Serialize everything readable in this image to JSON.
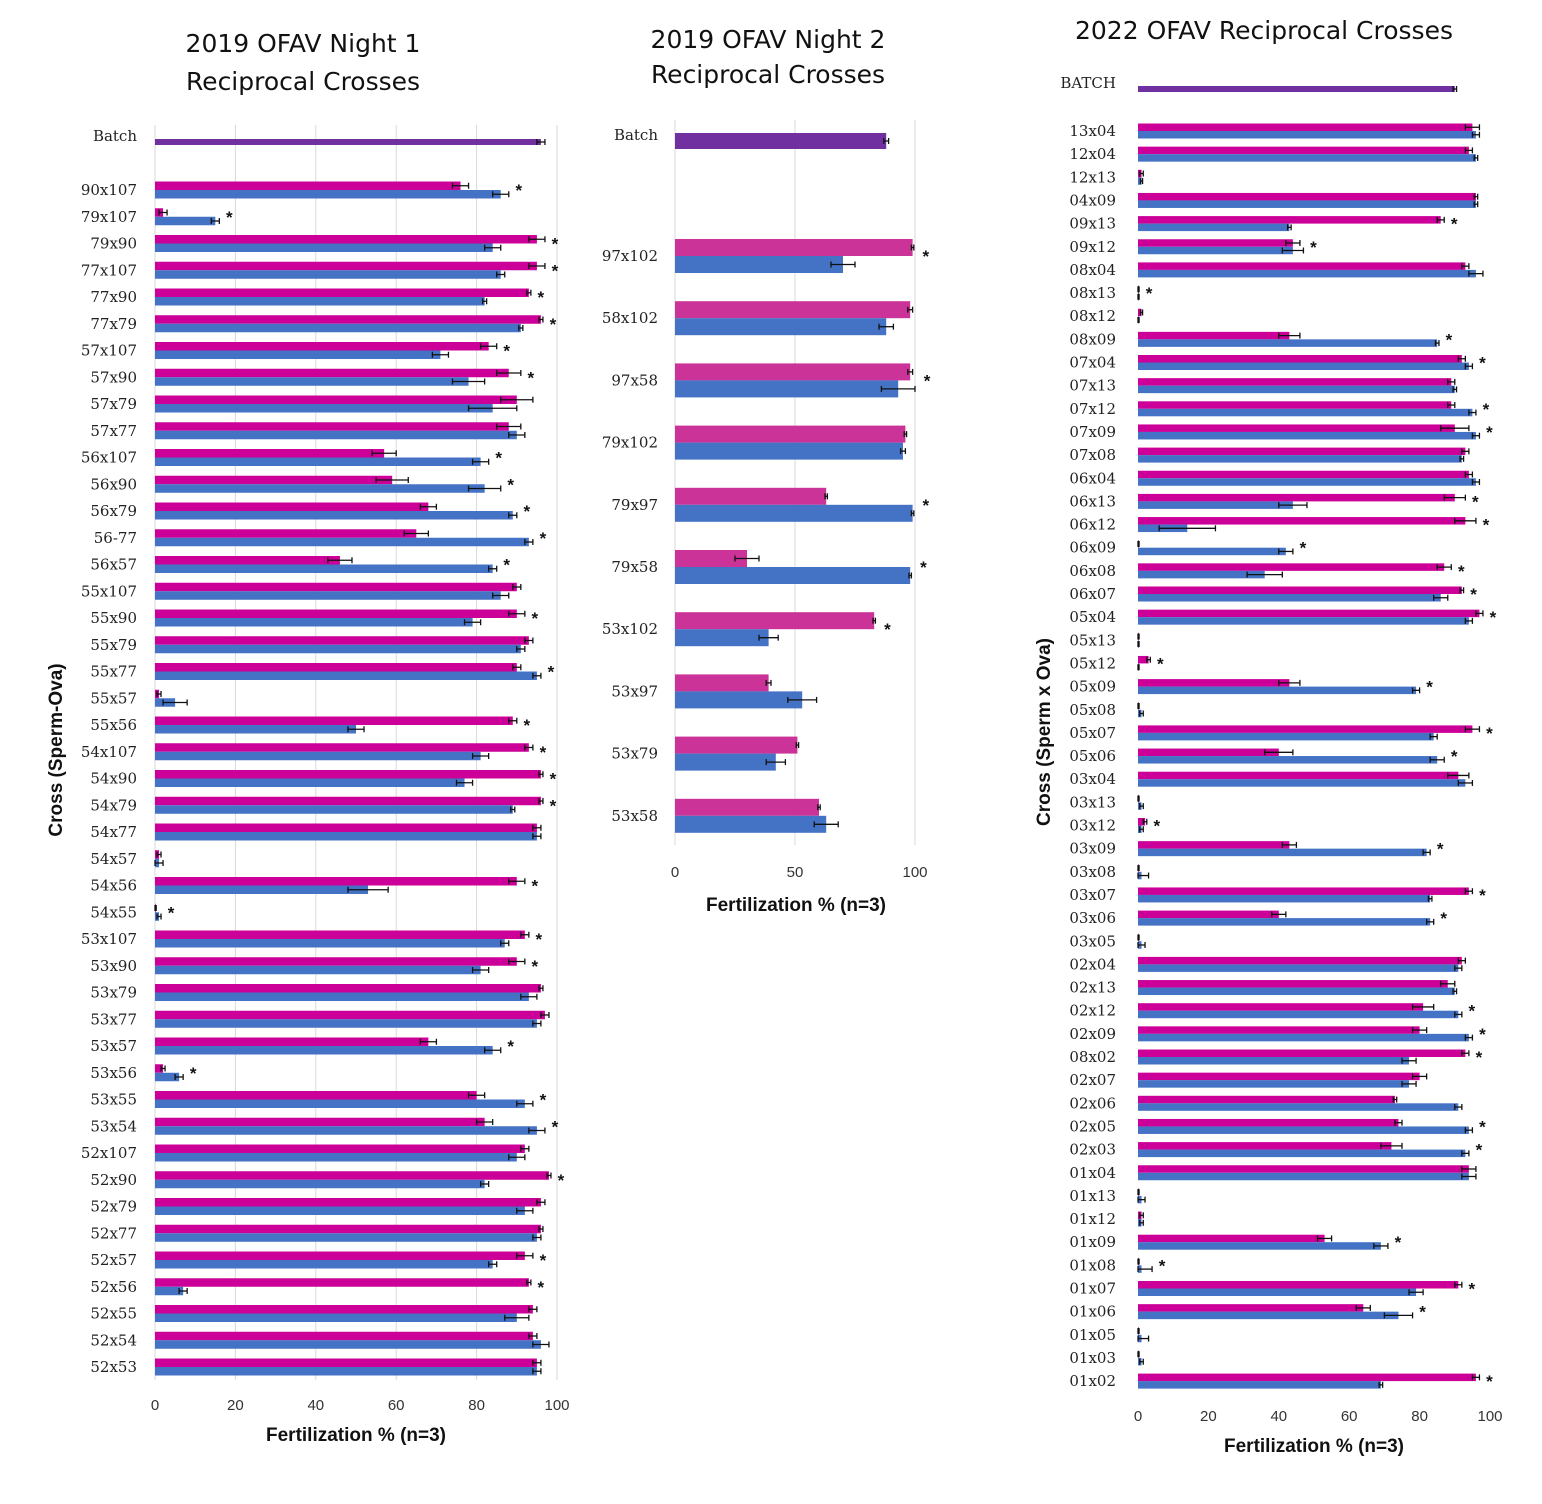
{
  "chart_data": [
    {
      "type": "bar",
      "orientation": "horizontal",
      "title": "2019 OFAV Night 1\nReciprocal Crosses",
      "xlabel": "Fertilization % (n=3)",
      "ylabel": "Cross (Sperm-Ova)",
      "xlim": [
        0,
        100
      ],
      "xticks": [
        0,
        20,
        40,
        60,
        80,
        100
      ],
      "grid": true,
      "colors": {
        "batch": "#7030a0",
        "pink": "#cc0099",
        "blue": "#4472c4"
      },
      "batch": {
        "label": "Batch",
        "value": 96,
        "err": 1
      },
      "categories": [
        "90x107",
        "79x107",
        "79x90",
        "77x107",
        "77x90",
        "77x79",
        "57x107",
        "57x90",
        "57x79",
        "57x77",
        "56x107",
        "56x90",
        "56x79",
        "56-77",
        "56x57",
        "55x107",
        "55x90",
        "55x79",
        "55x77",
        "55x57",
        "55x56",
        "54x107",
        "54x90",
        "54x79",
        "54x77",
        "54x57",
        "54x56",
        "54x55",
        "53x107",
        "53x90",
        "53x79",
        "53x77",
        "53x57",
        "53x56",
        "53x55",
        "53x54",
        "52x107",
        "52x90",
        "52x79",
        "52x77",
        "52x57",
        "52x56",
        "52x55",
        "52x54",
        "52x53"
      ],
      "series": [
        {
          "values": [
            76,
            2,
            95,
            95,
            93,
            96,
            83,
            88,
            90,
            88,
            57,
            59,
            68,
            65,
            46,
            90,
            90,
            93,
            90,
            1,
            89,
            93,
            96,
            96,
            95,
            1,
            90,
            0,
            92,
            90,
            96,
            97,
            68,
            2,
            80,
            82,
            92,
            98,
            96,
            96,
            92,
            93,
            94,
            94,
            95
          ],
          "errors": [
            2,
            1,
            2,
            2,
            0.5,
            0.5,
            2,
            3,
            4,
            3,
            3,
            4,
            2,
            3,
            3,
            1,
            2,
            1,
            1,
            0.5,
            1,
            1,
            0.5,
            0.5,
            1,
            0.5,
            2,
            0.3,
            1,
            2,
            0.5,
            1,
            2,
            0.5,
            2,
            2,
            1,
            0.5,
            1,
            0.5,
            2,
            0.5,
            1,
            1,
            1
          ]
        },
        {
          "values": [
            86,
            15,
            84,
            86,
            82,
            91,
            71,
            78,
            84,
            90,
            81,
            82,
            89,
            93,
            84,
            86,
            79,
            91,
            95,
            5,
            50,
            81,
            77,
            89,
            95,
            1,
            53,
            1,
            87,
            81,
            93,
            95,
            84,
            6,
            92,
            95,
            90,
            82,
            92,
            95,
            84,
            7,
            90,
            96,
            95
          ],
          "errors": [
            2,
            1,
            2,
            1,
            0.5,
            0.5,
            2,
            4,
            6,
            2,
            2,
            4,
            1,
            1,
            1,
            2,
            2,
            1,
            1,
            3,
            2,
            2,
            2,
            0.5,
            1,
            1,
            5,
            0.5,
            1,
            2,
            2,
            1,
            2,
            1,
            2,
            2,
            2,
            1,
            2,
            1,
            1,
            1,
            3,
            2,
            1
          ]
        }
      ],
      "significant": [
        "90x107",
        "79x107",
        "79x90",
        "77x107",
        "77x90",
        "77x79",
        "57x107",
        "57x90",
        "56x107",
        "56x90",
        "56x79",
        "56-77",
        "56x57",
        "55x90",
        "55x77",
        "55x56",
        "54x107",
        "54x90",
        "54x79",
        "54x56",
        "54x55",
        "53x107",
        "53x90",
        "53x57",
        "53x56",
        "53x55",
        "53x54",
        "52x90",
        "52x57",
        "52x56"
      ]
    },
    {
      "type": "bar",
      "orientation": "horizontal",
      "title": "2019 OFAV Night 2\nReciprocal Crosses",
      "xlabel": "Fertilization % (n=3)",
      "ylabel": "",
      "xlim": [
        0,
        100
      ],
      "xticks": [
        0,
        50,
        100
      ],
      "grid": true,
      "colors": {
        "batch": "#7030a0",
        "pink": "#cc3399",
        "blue": "#4472c4"
      },
      "batch": {
        "label": "Batch",
        "value": 88,
        "err": 1
      },
      "categories": [
        "97x102",
        "58x102",
        "97x58",
        "79x102",
        "79x97",
        "79x58",
        "53x102",
        "53x97",
        "53x79",
        "53x58"
      ],
      "series": [
        {
          "values": [
            99,
            98,
            98,
            96,
            63,
            30,
            83,
            39,
            51,
            60
          ],
          "errors": [
            0.5,
            1,
            1,
            0.5,
            0.5,
            5,
            0.5,
            1,
            0.5,
            0.5
          ]
        },
        {
          "values": [
            70,
            88,
            93,
            95,
            99,
            98,
            39,
            53,
            42,
            63
          ],
          "errors": [
            5,
            3,
            7,
            1,
            0.5,
            0.5,
            4,
            6,
            4,
            5
          ]
        }
      ],
      "significant": [
        "97x102",
        "97x58",
        "79x97",
        "79x58",
        "53x102"
      ]
    },
    {
      "type": "bar",
      "orientation": "horizontal",
      "title": "2022 OFAV Reciprocal Crosses",
      "xlabel": "Fertilization % (n=3)",
      "ylabel": "Cross (Sperm x Ova)",
      "xlim": [
        0,
        100
      ],
      "xticks": [
        0,
        20,
        40,
        60,
        80,
        100
      ],
      "grid": false,
      "colors": {
        "batch": "#7030a0",
        "pink": "#cc0099",
        "blue": "#4472c4"
      },
      "batch": {
        "label": "BATCH",
        "value": 90,
        "err": 0.5
      },
      "categories": [
        "13x04",
        "12x04",
        "12x13",
        "04x09",
        "09x13",
        "09x12",
        "08x04",
        "08x13",
        "08x12",
        "08x09",
        "07x04",
        "07x13",
        "07x12",
        "07x09",
        "07x08",
        "06x04",
        "06x13",
        "06x12",
        "06x09",
        "06x08",
        "06x07",
        "05x04",
        "05x13",
        "05x12",
        "05x09",
        "05x08",
        "05x07",
        "05x06",
        "03x04",
        "03x13",
        "03x12",
        "03x09",
        "03x08",
        "03x07",
        "03x06",
        "03x05",
        "02x04",
        "02x13",
        "02x12",
        "02x09",
        "08x02",
        "02x07",
        "02x06",
        "02x05",
        "02x03",
        "01x04",
        "01x13",
        "01x12",
        "01x09",
        "01x08",
        "01x07",
        "01x06",
        "01x05",
        "01x03",
        "01x02"
      ],
      "series": [
        {
          "values": [
            95,
            94,
            1,
            96,
            86,
            44,
            93,
            0,
            1,
            43,
            92,
            89,
            89,
            90,
            93,
            94,
            90,
            93,
            0,
            87,
            92,
            97,
            0,
            3,
            43,
            0,
            95,
            40,
            91,
            0,
            2,
            43,
            0,
            94,
            40,
            0,
            92,
            88,
            81,
            80,
            93,
            80,
            73,
            74,
            72,
            94,
            0,
            1,
            53,
            0,
            91,
            64,
            0,
            0,
            96
          ],
          "errors": [
            2,
            1,
            0.5,
            0.5,
            1,
            2,
            1,
            0.3,
            0.3,
            3,
            1,
            1,
            1,
            4,
            1,
            1,
            3,
            3,
            0.3,
            2,
            0.5,
            1,
            0.3,
            0.5,
            3,
            0.3,
            2,
            4,
            3,
            0.3,
            0.5,
            2,
            0.3,
            1,
            2,
            0.3,
            1,
            2,
            3,
            2,
            1,
            2,
            0.5,
            1,
            3,
            2,
            0.3,
            0.5,
            2,
            0.3,
            1,
            2,
            0.3,
            0.3,
            1
          ]
        },
        {
          "values": [
            96,
            96,
            1,
            96,
            43,
            44,
            96,
            0,
            0,
            85,
            94,
            90,
            95,
            96,
            92,
            96,
            44,
            14,
            42,
            36,
            86,
            94,
            0,
            0,
            79,
            1,
            84,
            85,
            93,
            1,
            1,
            82,
            1,
            83,
            83,
            1,
            91,
            90,
            91,
            94,
            77,
            77,
            91,
            94,
            93,
            94,
            1,
            1,
            69,
            1,
            79,
            74,
            1,
            1,
            69
          ],
          "errors": [
            1,
            0.5,
            0.3,
            0.5,
            0.5,
            3,
            2,
            0.3,
            0.3,
            0.5,
            1,
            0.5,
            1,
            1,
            0.5,
            1,
            4,
            8,
            2,
            5,
            2,
            1,
            0.3,
            0.3,
            1,
            0.5,
            1,
            2,
            2,
            0.5,
            0.5,
            1,
            2,
            0.5,
            1,
            1,
            1,
            0.5,
            1,
            1,
            2,
            2,
            1,
            1,
            1,
            2,
            1,
            0.5,
            2,
            3,
            2,
            4,
            2,
            0.5,
            0.5
          ]
        }
      ],
      "significant": [
        "09x13",
        "09x12",
        "08x13",
        "08x09",
        "07x04",
        "07x12",
        "07x09",
        "06x13",
        "06x12",
        "06x09",
        "06x08",
        "06x07",
        "05x04",
        "05x12",
        "05x09",
        "05x07",
        "05x06",
        "03x12",
        "03x09",
        "03x07",
        "03x06",
        "02x12",
        "02x09",
        "08x02",
        "02x05",
        "02x03",
        "01x09",
        "01x08",
        "01x07",
        "01x06",
        "01x02"
      ]
    }
  ]
}
